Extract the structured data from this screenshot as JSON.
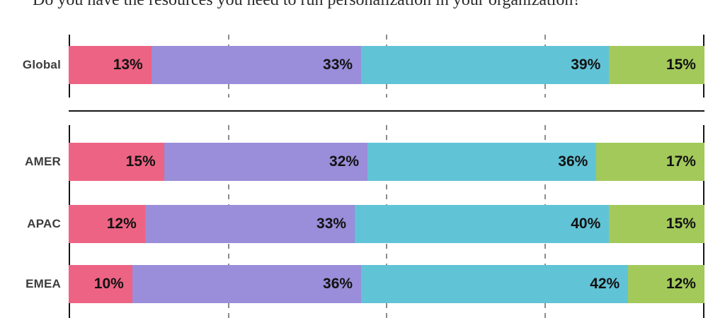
{
  "title": "Do you have the resources you need to run personalization in your organization?",
  "colors": {
    "segment_pink": "#ED6383",
    "segment_purple": "#9A8DD9",
    "segment_teal": "#61C3D6",
    "segment_green": "#A3C95B",
    "axis": "#161616",
    "gridline": "#8c8c8c",
    "category_label": "#3d3d3d",
    "value_label": "#121212"
  },
  "chart_data": {
    "type": "bar",
    "stacked": true,
    "orientation": "horizontal",
    "title": "Do you have the resources you need to run personalization in your organization?",
    "unit": "%",
    "xlim": [
      0,
      100
    ],
    "gridlines_percent": [
      25,
      50,
      75
    ],
    "grid": "dashed-vertical",
    "legend": "none",
    "segment_colors": [
      "#ED6383",
      "#9A8DD9",
      "#61C3D6",
      "#A3C95B"
    ],
    "categories": [
      "Global",
      "AMER",
      "APAC",
      "EMEA"
    ],
    "groups": [
      {
        "name": "global",
        "rows": [
          {
            "label": "Global",
            "values": [
              13,
              33,
              39,
              15
            ]
          }
        ]
      },
      {
        "name": "regions",
        "rows": [
          {
            "label": "AMER",
            "values": [
              15,
              32,
              36,
              17
            ]
          },
          {
            "label": "APAC",
            "values": [
              12,
              33,
              40,
              15
            ]
          },
          {
            "label": "EMEA",
            "values": [
              10,
              36,
              42,
              12
            ]
          }
        ]
      }
    ]
  }
}
